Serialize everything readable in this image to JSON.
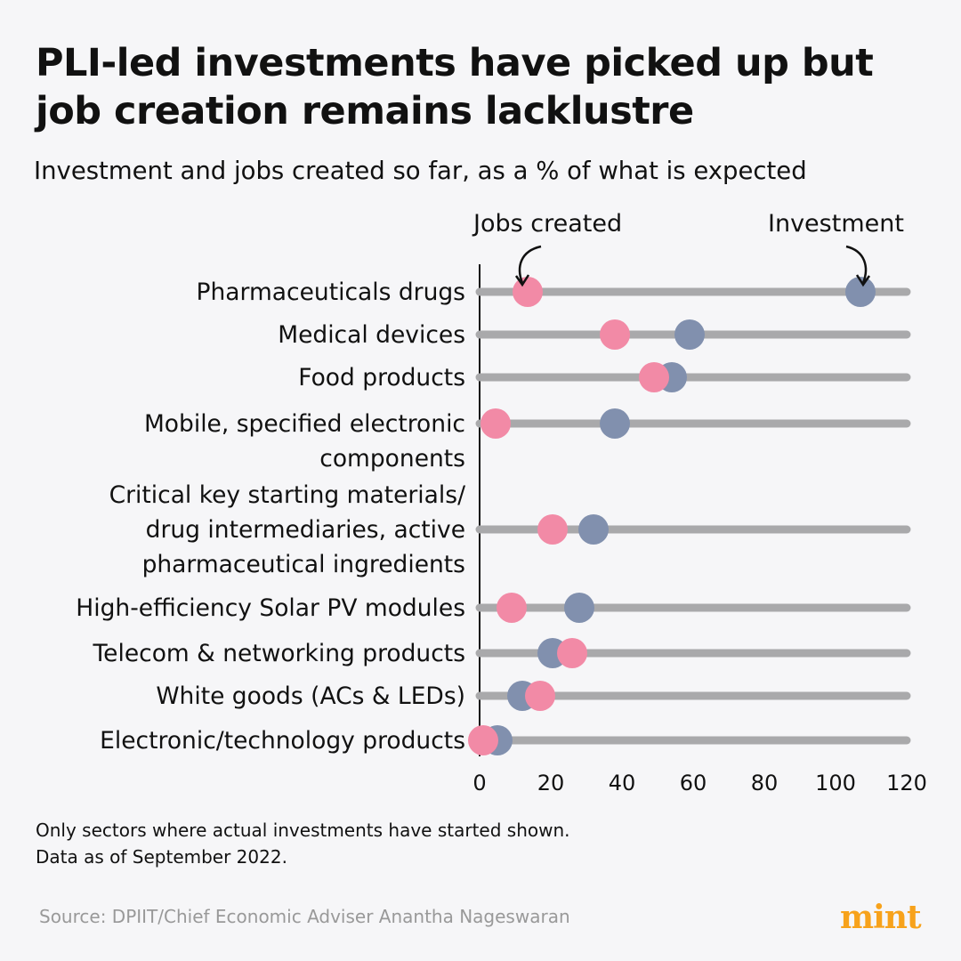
{
  "title": "PLI-led investments have picked up but job creation remains lacklustre",
  "subtitle": "Investment and jobs created so far, as a % of what is expected",
  "legend": {
    "jobs": "Jobs created",
    "investment": "Investment"
  },
  "colors": {
    "jobs": "#f28aa6",
    "investment": "#8190ae",
    "track": "#a9a9ab",
    "logo": "#f7a21b"
  },
  "chart_data": {
    "type": "dot",
    "title": "PLI-led investments have picked up but job creation remains lacklustre",
    "subtitle": "Investment and jobs created so far, as a % of what is expected",
    "xlabel": "",
    "ylabel": "",
    "xlim": [
      0,
      120
    ],
    "xticks": [
      "0",
      "20",
      "40",
      "60",
      "80",
      "100",
      "120"
    ],
    "categories": [
      [
        "Pharmaceuticals drugs"
      ],
      [
        "Medical devices"
      ],
      [
        "Food products"
      ],
      [
        "Mobile, specified electronic",
        "components"
      ],
      [
        "Critical key starting materials/",
        "drug intermediaries, active",
        "pharmaceutical ingredients"
      ],
      [
        "High-efficiency Solar PV modules"
      ],
      [
        "Telecom & networking products"
      ],
      [
        "White goods (ACs & LEDs)"
      ],
      [
        "Electronic/technology products"
      ]
    ],
    "series": [
      {
        "name": "Jobs created",
        "values": [
          13.5,
          38,
          49,
          4.5,
          20.5,
          9,
          26,
          17,
          1
        ]
      },
      {
        "name": "Investment",
        "values": [
          107,
          59,
          54,
          38,
          32,
          28,
          20.5,
          12,
          5
        ]
      }
    ]
  },
  "footnote": [
    "Only sectors where actual investments have started shown.",
    "Data as of September 2022."
  ],
  "source": "Source: DPIIT/Chief Economic Adviser Anantha Nageswaran",
  "logo": "mint"
}
